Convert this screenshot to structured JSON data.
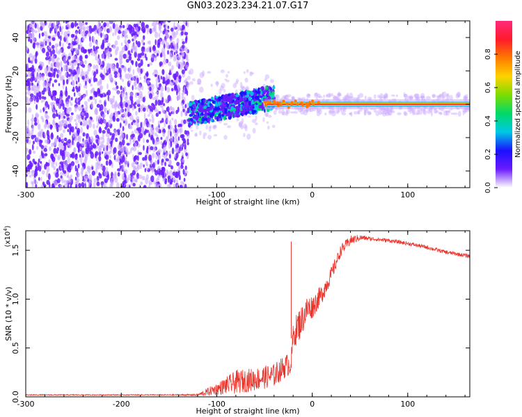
{
  "title": "GN03.2023.234.21.07.G17",
  "colors": {
    "axis": "#000000",
    "snr_line": "#e8332b",
    "spectrogram_low": "#6a1bff",
    "spectrogram_faint": "#c9a8ff"
  },
  "chart_data": [
    {
      "type": "heatmap",
      "panel": "spectrogram",
      "xlabel": "Height of straight line (km)",
      "ylabel": "Frequency (Hz)",
      "xlim": [
        -300,
        165
      ],
      "ylim": [
        -50,
        50
      ],
      "xticks": [
        -300,
        -200,
        -100,
        0,
        100
      ],
      "yticks": [
        -40,
        -20,
        0,
        20,
        40
      ],
      "colorbar": {
        "label": "Normalized spectral amplitude",
        "range": [
          0,
          1
        ],
        "ticks": [
          0.0,
          0.2,
          0.4,
          0.6,
          0.8
        ],
        "colormap": [
          "#ffffff",
          "#6a1bff",
          "#1a10ff",
          "#00c8e6",
          "#00d96a",
          "#7ddc00",
          "#ffd200",
          "#ff7a00",
          "#ff1a2a",
          "#ff2a7a"
        ]
      },
      "regions": [
        {
          "x": [
            -300,
            -130
          ],
          "freq": [
            -50,
            50
          ],
          "amplitude": [
            0.05,
            0.25
          ],
          "description": "noise"
        },
        {
          "x": [
            -130,
            -40
          ],
          "freq": [
            -10,
            10
          ],
          "amplitude": [
            0.2,
            0.45
          ]
        },
        {
          "x": [
            -40,
            165
          ],
          "freq": [
            -1,
            1
          ],
          "amplitude": [
            0.85,
            1.0
          ]
        }
      ]
    },
    {
      "type": "line",
      "panel": "snr",
      "xlabel": "Height of straight line (km)",
      "ylabel": "SNR (10 * v/v)",
      "scale_label": "(x10",
      "scale_exp": "4",
      "scale_close": ")",
      "xlim": [
        -300,
        165
      ],
      "ylim": [
        0,
        1.7
      ],
      "xticks": [
        -300,
        -200,
        -100,
        0,
        100
      ],
      "yticks": [
        0.0,
        0.5,
        1.0,
        1.5
      ],
      "series": [
        {
          "x": [
            -300,
            -250,
            -200,
            -150,
            -120,
            -110,
            -100,
            -80,
            -60,
            -40,
            -30,
            -22,
            -20,
            -15,
            -10,
            -5,
            0,
            10,
            20,
            30,
            40,
            50,
            60,
            80,
            100,
            120,
            140,
            165
          ],
          "y": [
            0.02,
            0.02,
            0.02,
            0.02,
            0.02,
            0.05,
            0.08,
            0.15,
            0.18,
            0.22,
            0.3,
            0.35,
            0.62,
            0.72,
            0.8,
            0.9,
            0.92,
            1.05,
            1.25,
            1.5,
            1.6,
            1.63,
            1.62,
            1.6,
            1.57,
            1.53,
            1.48,
            1.44
          ],
          "noise": [
            0.005,
            0.005,
            0.005,
            0.005,
            0.01,
            0.04,
            0.06,
            0.12,
            0.12,
            0.12,
            0.12,
            0.12,
            0.12,
            0.18,
            0.15,
            0.15,
            0.12,
            0.1,
            0.08,
            0.06,
            0.05,
            0.03,
            0.02,
            0.02,
            0.02,
            0.02,
            0.02,
            0.02
          ]
        }
      ],
      "annotations": [
        {
          "x": -22,
          "y": 1.59,
          "description": "spike"
        }
      ]
    }
  ]
}
